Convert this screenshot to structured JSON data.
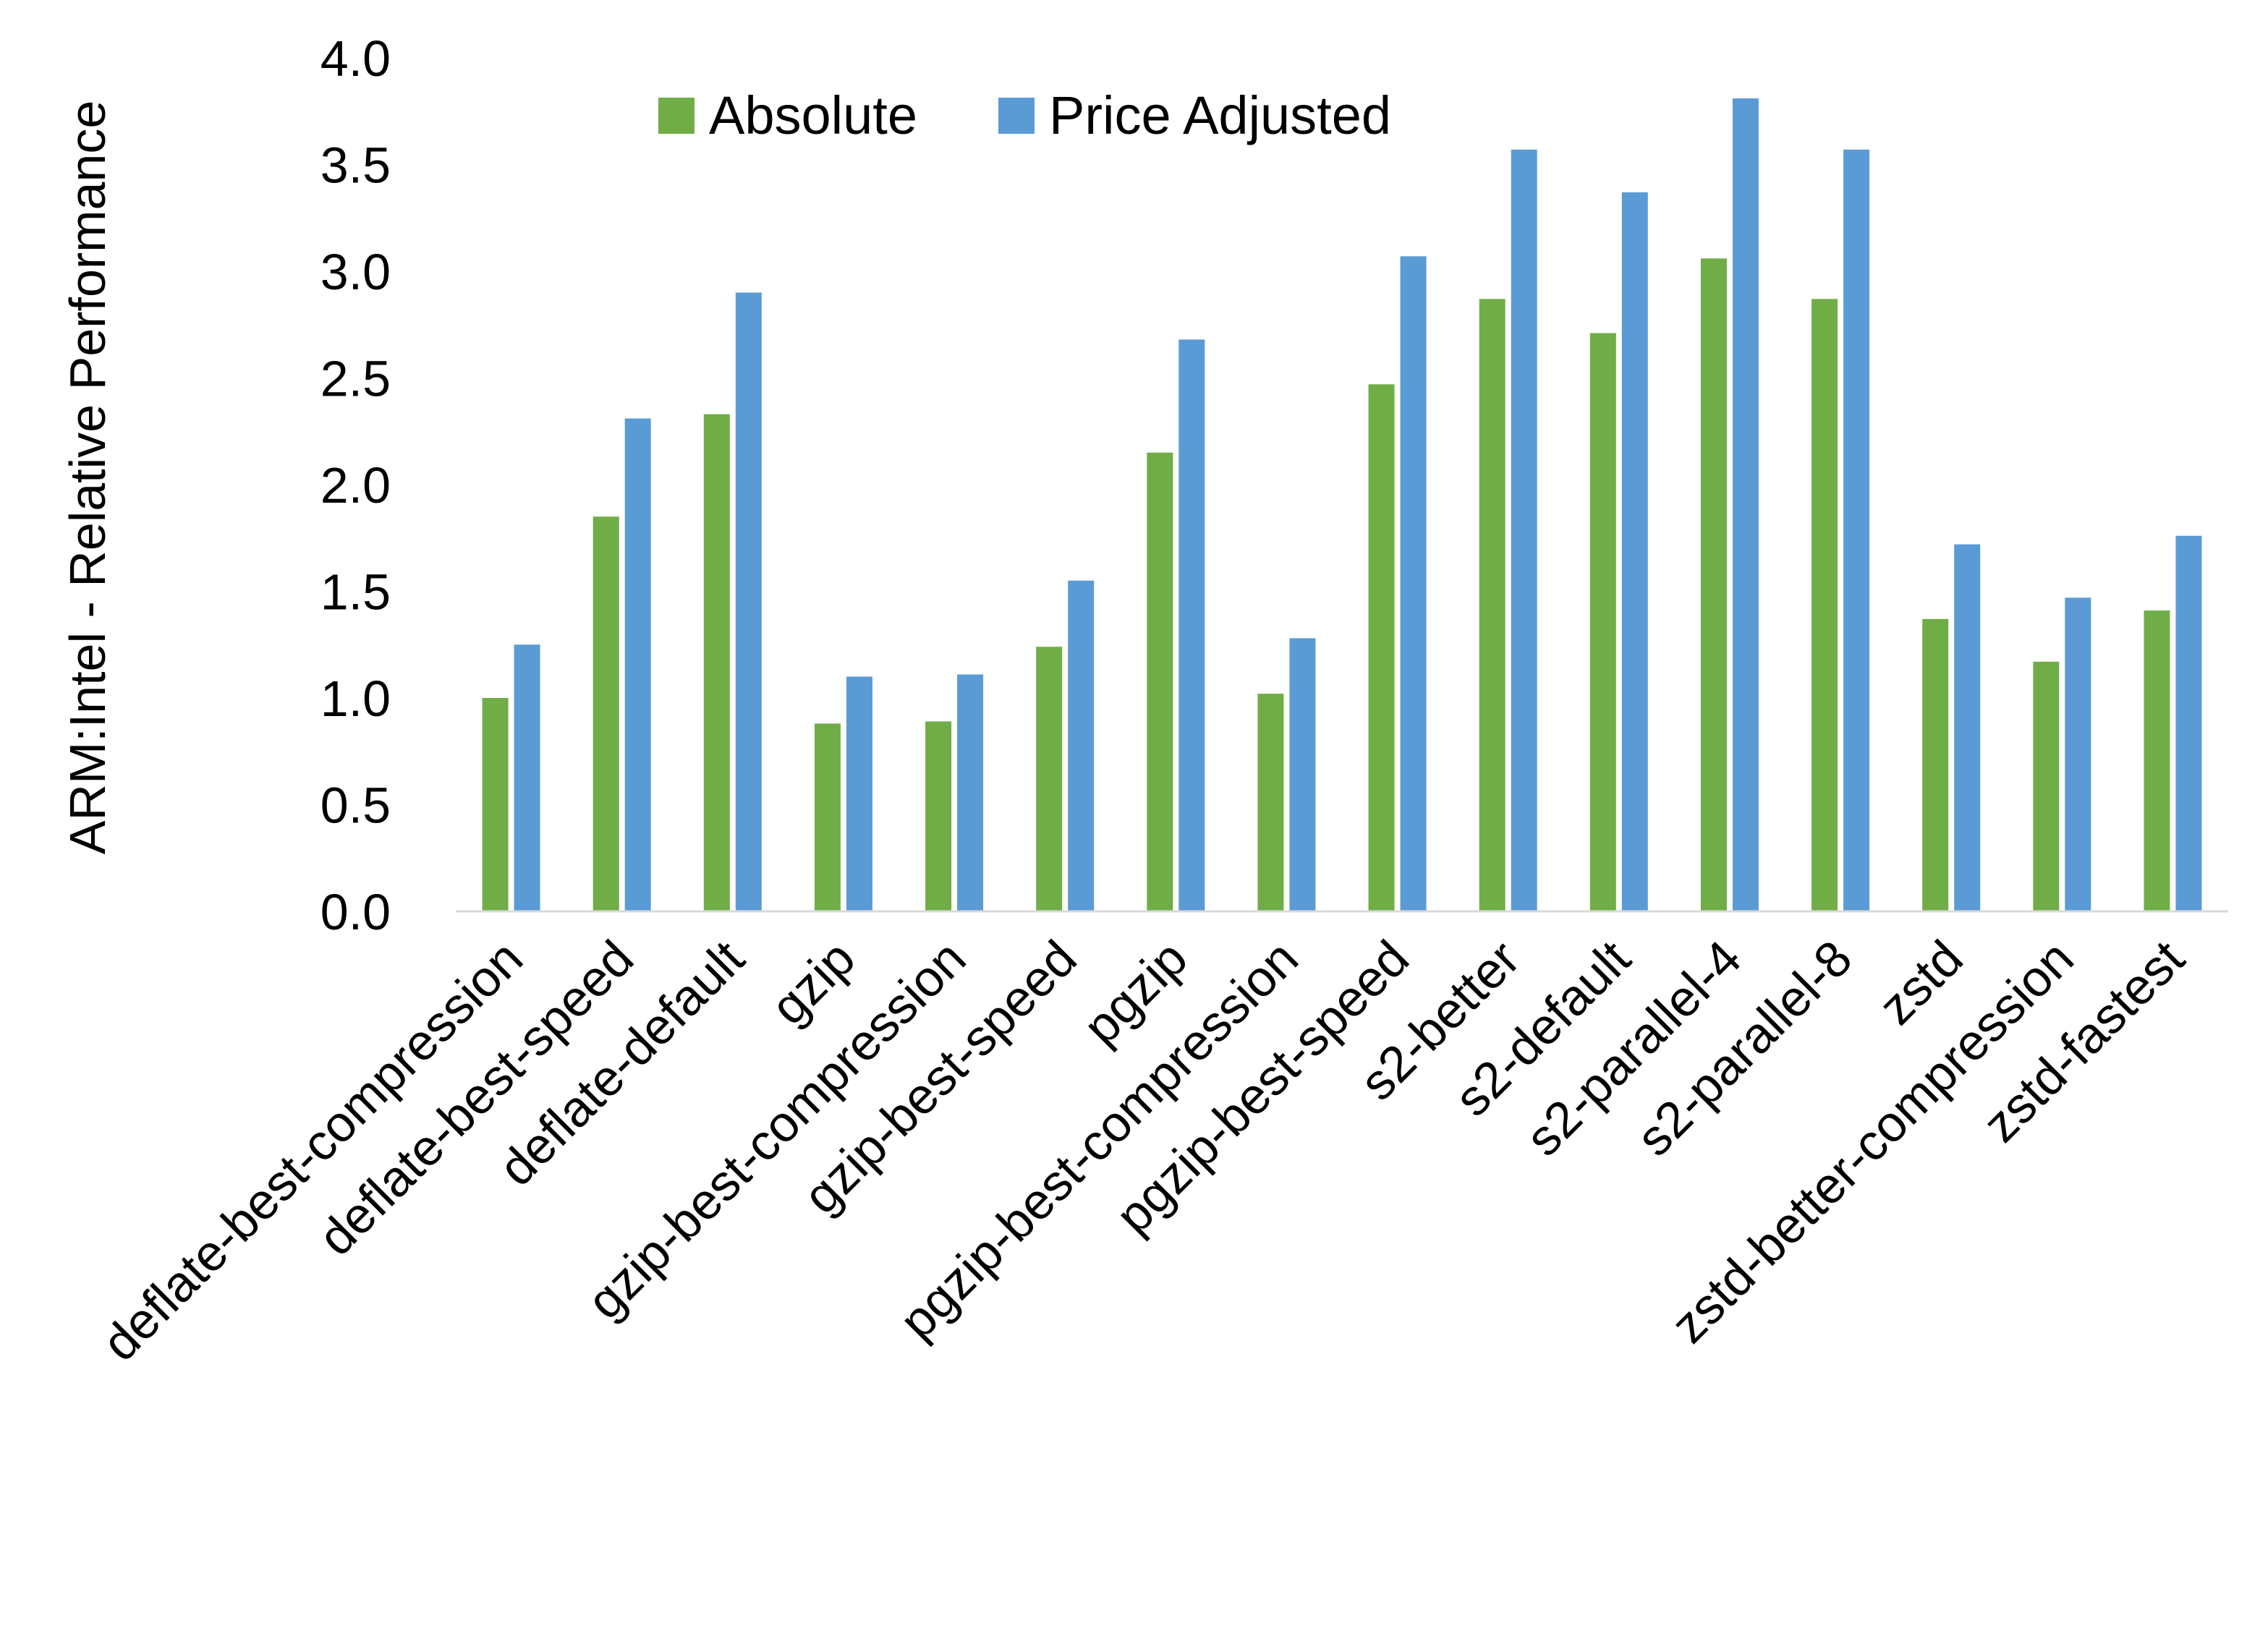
{
  "chart_data": {
    "type": "bar",
    "title": "",
    "xlabel": "",
    "ylabel": "ARM:Intel - Relative Performance",
    "ylim": [
      0,
      4.0
    ],
    "yticks": [
      "0.0",
      "0.5",
      "1.0",
      "1.5",
      "2.0",
      "2.5",
      "3.0",
      "3.5",
      "4.0"
    ],
    "grid": false,
    "legend_position": "top",
    "categories": [
      "deflate-best-compression",
      "deflate-best-speed",
      "deflate-default",
      "gzip",
      "gzip-best-compression",
      "gzip-best-speed",
      "pgzip",
      "pgzip-best-compression",
      "pgzip-best-speed",
      "s2-better",
      "s2-default",
      "s2-parallel-4",
      "s2-parallel-8",
      "zstd",
      "zstd-better-compression",
      "zstd-fastest"
    ],
    "series": [
      {
        "name": "Absolute",
        "color": "#70AD47",
        "values": [
          1.0,
          1.85,
          2.33,
          0.88,
          0.89,
          1.24,
          2.15,
          1.02,
          2.47,
          2.87,
          2.71,
          3.06,
          2.87,
          1.37,
          1.17,
          1.41
        ]
      },
      {
        "name": "Price Adjusted",
        "color": "#5B9BD5",
        "values": [
          1.25,
          2.31,
          2.9,
          1.1,
          1.11,
          1.55,
          2.68,
          1.28,
          3.07,
          3.57,
          3.37,
          3.81,
          3.57,
          1.72,
          1.47,
          1.76
        ]
      }
    ]
  }
}
